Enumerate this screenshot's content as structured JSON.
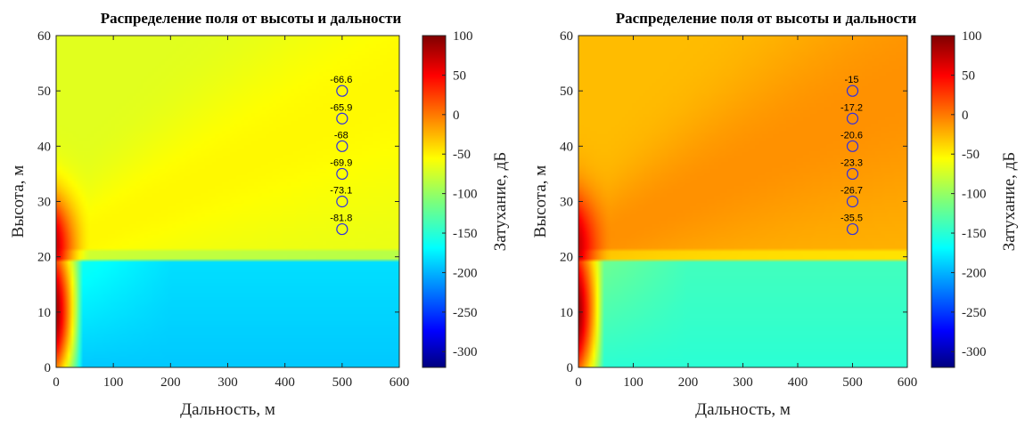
{
  "chart_data": [
    {
      "type": "heatmap",
      "title": "Распределение поля от высоты и дальности",
      "xlabel": "Дальность, м",
      "ylabel": "Высота, м",
      "xlim": [
        0,
        600
      ],
      "ylim": [
        0,
        60
      ],
      "xticks": [
        "0",
        "100",
        "200",
        "300",
        "400",
        "500",
        "600"
      ],
      "yticks": [
        "0",
        "10",
        "20",
        "30",
        "40",
        "50",
        "60"
      ],
      "colorbar": {
        "label": "Затухание, дБ",
        "range": [
          -320,
          100
        ],
        "ticks": [
          "100",
          "50",
          "0",
          "-50",
          "-100",
          "-150",
          "-200",
          "-250",
          "-300"
        ],
        "colormap": "jet"
      },
      "markers": [
        {
          "x": 500,
          "y": 50,
          "label": "-66.6"
        },
        {
          "x": 500,
          "y": 45,
          "label": "-65.9"
        },
        {
          "x": 500,
          "y": 40,
          "label": "-68"
        },
        {
          "x": 500,
          "y": 35,
          "label": "-69.9"
        },
        {
          "x": 500,
          "y": 30,
          "label": "-73.1"
        },
        {
          "x": 500,
          "y": 25,
          "label": "-81.8"
        }
      ],
      "field": {
        "upper_plateau_db": -70,
        "sector_peak_db": -55,
        "source_peak_db": 95,
        "lower_region_db": -185
      }
    },
    {
      "type": "heatmap",
      "title": "Распределение поля от высоты и дальности",
      "xlabel": "Дальность, м",
      "ylabel": "Высота, м",
      "xlim": [
        0,
        600
      ],
      "ylim": [
        0,
        60
      ],
      "xticks": [
        "0",
        "100",
        "200",
        "300",
        "400",
        "500",
        "600"
      ],
      "yticks": [
        "0",
        "10",
        "20",
        "30",
        "40",
        "50",
        "60"
      ],
      "colorbar": {
        "label": "Затухание, дБ",
        "range": [
          -320,
          100
        ],
        "ticks": [
          "100",
          "50",
          "0",
          "-50",
          "-100",
          "-150",
          "-200",
          "-250",
          "-300"
        ],
        "colormap": "jet"
      },
      "markers": [
        {
          "x": 500,
          "y": 50,
          "label": "-15"
        },
        {
          "x": 500,
          "y": 45,
          "label": "-17.2"
        },
        {
          "x": 500,
          "y": 40,
          "label": "-20.6"
        },
        {
          "x": 500,
          "y": 35,
          "label": "-23.3"
        },
        {
          "x": 500,
          "y": 30,
          "label": "-26.7"
        },
        {
          "x": 500,
          "y": 25,
          "label": "-35.5"
        }
      ],
      "field": {
        "upper_plateau_db": -30,
        "sector_peak_db": -12,
        "source_peak_db": 95,
        "lower_region_db": -145
      }
    }
  ]
}
